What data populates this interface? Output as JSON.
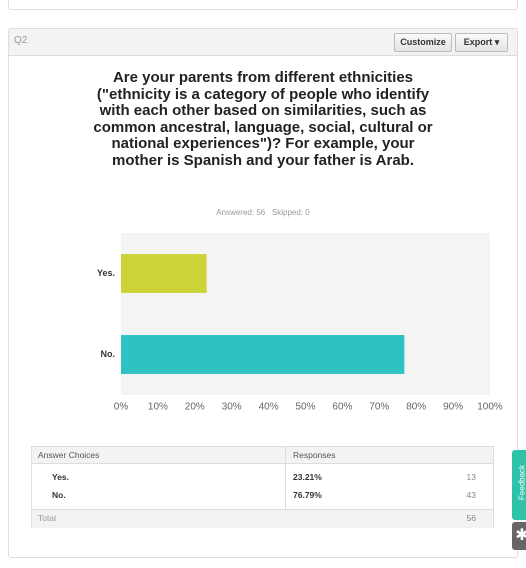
{
  "question": {
    "id": "Q2",
    "buttons": [
      "Customize",
      "Export ▾"
    ],
    "answered": "Answered: 56",
    "skipped": "Skipped: 0"
  },
  "chart_data": {
    "type": "bar",
    "orientation": "horizontal",
    "title": "Are your parents from different ethnicities (\"ethnicity is a category of people who identify with each other based on similarities, such as common ancestral, language, social, cultural or national experiences\")? For example, your mother is Spanish and your father is Arab.",
    "categories": [
      "Yes.",
      "No."
    ],
    "values": [
      23.21,
      76.79
    ],
    "colors": [
      "#cbd336",
      "#2ec2c2"
    ],
    "xlim": [
      0,
      100
    ],
    "xticks": [
      {
        "value": 0,
        "label": "0%"
      },
      {
        "value": 10,
        "label": "10%"
      },
      {
        "value": 20,
        "label": "20%"
      },
      {
        "value": 30,
        "label": "30%"
      },
      {
        "value": 40,
        "label": "40%"
      },
      {
        "value": 50,
        "label": "50%"
      },
      {
        "value": 60,
        "label": "60%"
      },
      {
        "value": 70,
        "label": "70%"
      },
      {
        "value": 80,
        "label": "80%"
      },
      {
        "value": 90,
        "label": "90%"
      },
      {
        "value": 100,
        "label": "100%"
      }
    ],
    "grid": false
  },
  "table": {
    "header": [
      "Answer Choices",
      "Responses"
    ],
    "rows": [
      [
        "Yes.",
        "23.21%",
        "13"
      ],
      [
        "No.",
        "76.79%",
        "43"
      ]
    ],
    "total": [
      "Total",
      "56"
    ]
  },
  "feedback": "Feedback"
}
